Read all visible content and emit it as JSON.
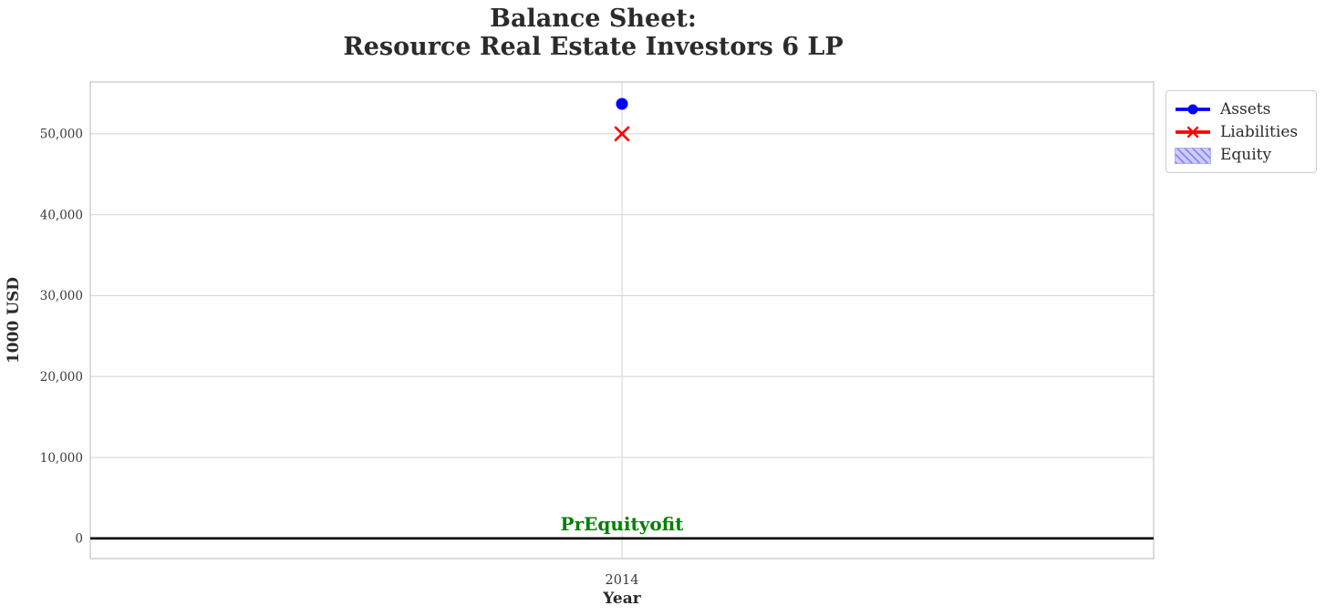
{
  "figure": {
    "title_lines": [
      "Balance Sheet:",
      "Resource Real Estate Investors 6 LP"
    ]
  },
  "chart_data": {
    "type": "line",
    "title": "Balance Sheet:\nResource Real Estate Investors 6 LP",
    "xlabel": "Year",
    "ylabel": "1000 USD",
    "x": [
      2014
    ],
    "series": [
      {
        "name": "Assets",
        "color": "#0000ff",
        "marker": "circle",
        "values": [
          53700
        ]
      },
      {
        "name": "Liabilities",
        "color": "#ff0000",
        "marker": "x",
        "values": [
          50000
        ]
      },
      {
        "name": "Equity",
        "color": "#ccccff",
        "hatch_color": "#8888ee",
        "border_color": "#b0b0e8",
        "marker": "hatched-patch",
        "values": [],
        "visible_on_plot": false
      }
    ],
    "y_ticks": [
      0,
      10000,
      20000,
      30000,
      40000,
      50000
    ],
    "y_tick_labels": [
      "0",
      "10,000",
      "20,000",
      "30,000",
      "40,000",
      "50,000"
    ],
    "x_ticks": [
      2014
    ],
    "x_tick_labels": [
      "2014"
    ],
    "xlim": [
      2013.5,
      2014.5
    ],
    "ylim": [
      -2500,
      56400
    ],
    "grid": true,
    "legend_position": "outside-upper-right",
    "zero_line": {
      "y": 0,
      "color": "#000000"
    },
    "annotation": {
      "text": "PrEquityofit",
      "color": "#008000",
      "x": 2014,
      "y": 1800
    }
  },
  "colors": {
    "text": "#2b2b2b",
    "tick_text": "#3a3a3a",
    "gridline": "#d7d7d7",
    "spine": "#c8c8c8",
    "background": "#ffffff"
  }
}
